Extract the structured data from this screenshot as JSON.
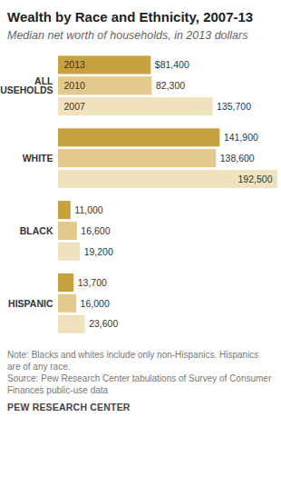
{
  "chart_data": {
    "type": "bar",
    "orientation": "horizontal",
    "title": "Wealth by Race and Ethnicity, 2007-13",
    "subtitle": "Median net worth of households, in 2013 dollars",
    "categories": [
      "ALL HOUSEHOLDS",
      "WHITE",
      "BLACK",
      "HISPANIC"
    ],
    "series": [
      {
        "name": "2013",
        "color": "#c9a240",
        "values": [
          81400,
          141900,
          11000,
          13700
        ],
        "value_labels": [
          "$81,400",
          "141,900",
          "11,000",
          "13,700"
        ]
      },
      {
        "name": "2010",
        "color": "#e3ca8c",
        "values": [
          82300,
          138600,
          16600,
          16000
        ],
        "value_labels": [
          "82,300",
          "138,600",
          "16,600",
          "16,000"
        ]
      },
      {
        "name": "2007",
        "color": "#f1e2bf",
        "values": [
          135700,
          192500,
          19200,
          23600
        ],
        "value_labels": [
          "135,700",
          "192,500",
          "19,200",
          "23,600"
        ]
      }
    ],
    "xlim": [
      0,
      192500
    ],
    "data_labels": true,
    "tick_labels": false,
    "grid": false,
    "note": "Note: Blacks and whites include only non-Hispanics. Hispanics are of any race.",
    "source": "Source: Pew Research Center tabulations of Survey of Consumer Finances public-use data",
    "credit": "PEW RESEARCH CENTER"
  }
}
